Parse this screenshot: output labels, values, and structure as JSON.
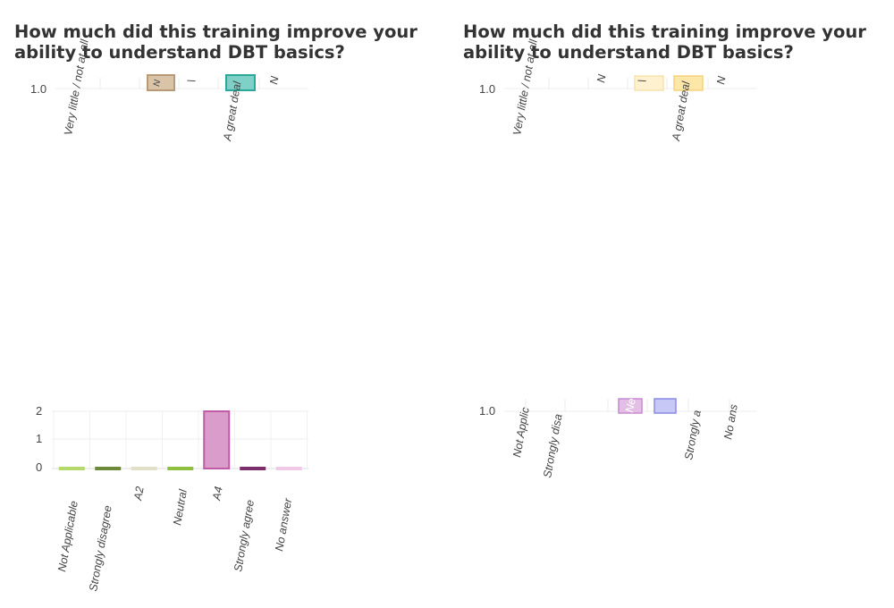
{
  "charts": [
    {
      "title": "How much did this training improve your ability to understand DBT basics?"
    },
    {
      "title": "How much did this training improve your ability to understand DBT basics?"
    }
  ],
  "chart_data": [
    {
      "type": "bar",
      "title": "How much did this training improve your ability to understand DBT basics?",
      "categories": [
        "Very little / not at all",
        "N",
        "\\",
        "A great deal",
        "N"
      ],
      "values": [
        0,
        1,
        0,
        1,
        0
      ],
      "colors": [
        "#b89a76",
        "#b89a76",
        "#c9c9c9",
        "#2aa89a",
        "#dddddd"
      ],
      "yticks": [
        1.0
      ],
      "yticks_label": [
        "1.0"
      ],
      "note": ""
    },
    {
      "type": "bar",
      "title": "How much did this training improve your ability to understand DBT basics?",
      "categories": [
        "Very little / not at all",
        "N",
        "\\",
        "A great deal",
        "N"
      ],
      "values": [
        0,
        0,
        1,
        1,
        0
      ],
      "colors": [
        "#dddddd",
        "#dddddd",
        "#f6d27a",
        "#f6d27a",
        "#dddddd"
      ],
      "yticks_label": [
        "1.0"
      ]
    },
    {
      "type": "bar",
      "categories": [
        "Not Applicable",
        "Strongly disagree",
        "A2",
        "Neutral",
        "A4",
        "Strongly agree",
        "No answer"
      ],
      "values": [
        0,
        0,
        0,
        0,
        2,
        0,
        0
      ],
      "colors": [
        "#b5d96b",
        "#6b8a3a",
        "#e0e0c8",
        "#8fbf3f",
        "#c05ba8",
        "#7a2f6a",
        "#f0c8e8"
      ],
      "ylim": [
        0,
        2
      ],
      "yticks_label": [
        "0",
        "1",
        "2"
      ]
    },
    {
      "type": "bar",
      "categories": [
        "Not Applic",
        "Strongly disa",
        "Ne",
        "",
        "Strongly a",
        "No ans"
      ],
      "values": [
        0,
        0,
        1,
        1,
        0,
        0
      ],
      "colors": [
        "#dddddd",
        "#dddddd",
        "#c88ad0",
        "#8a8ae8",
        "#dddddd",
        "#dddddd"
      ],
      "yticks_label": [
        "1.0"
      ]
    }
  ]
}
